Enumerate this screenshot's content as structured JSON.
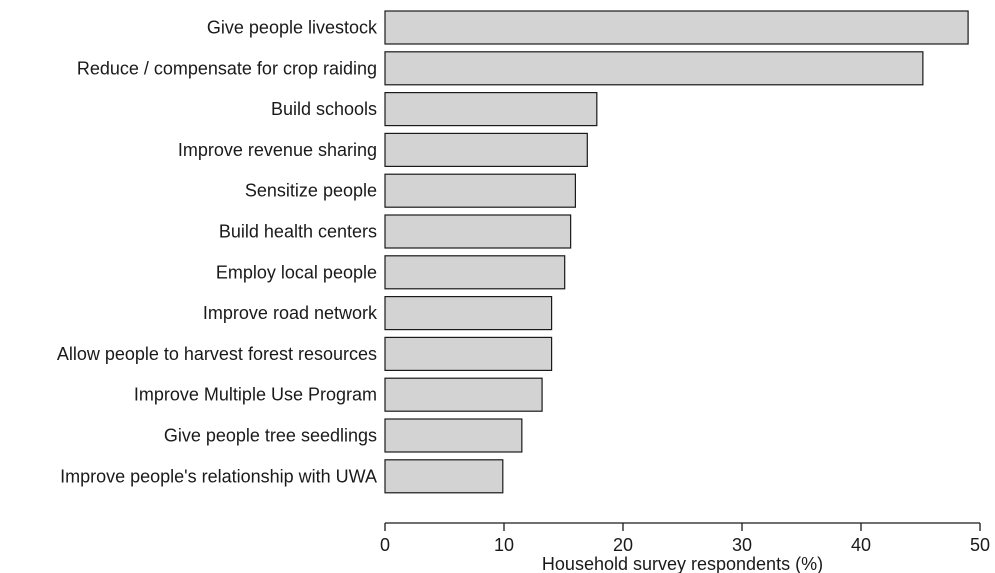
{
  "chart_data": {
    "type": "bar",
    "orientation": "horizontal",
    "categories": [
      "Give people livestock",
      "Reduce / compensate for crop raiding",
      "Build schools",
      "Improve revenue sharing",
      "Sensitize people",
      "Build health centers",
      "Employ local people",
      "Improve road network",
      "Allow people to harvest forest resources",
      "Improve Multiple Use Program",
      "Give people tree seedlings",
      "Improve people's relationship with UWA"
    ],
    "values": [
      49.0,
      45.2,
      17.8,
      17.0,
      16.0,
      15.6,
      15.1,
      14.0,
      14.0,
      13.2,
      11.5,
      9.9
    ],
    "title": "",
    "xlabel": "Household survey respondents (%)",
    "ylabel": "",
    "xlim": [
      0,
      50
    ],
    "xticks": [
      "0",
      "10",
      "20",
      "30",
      "40",
      "50"
    ],
    "grid": false,
    "legend": "none",
    "colors": {
      "bar_fill": "#d3d3d3",
      "bar_stroke": "#1a1a1a",
      "axis": "#1a1a1a",
      "text": "#1a1a1a"
    }
  }
}
